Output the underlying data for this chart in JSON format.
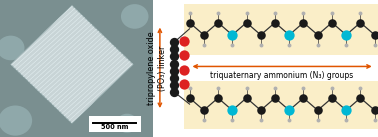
{
  "left_panel": {
    "bg_color": "#7a8f90",
    "scale_bar_text": "500 nm",
    "crystal_fill": "#c8d4d6",
    "crystal_edge": "#9ab0b2",
    "line_color_45": "#dce8ea",
    "line_color_135": "#dce8ea",
    "blob_color": "#8fa8aa"
  },
  "right_panel": {
    "strip_color": "#faeec8",
    "arrow_color": "#e05500",
    "arrow_label": "triquaternary ammonium (N₃) groups",
    "linker_label_line1": "tripropylene oxide",
    "linker_label_line2": "(PO₃) linker",
    "label_fontsize": 5.8,
    "arrow_fontsize": 5.5,
    "carbon_color": "#1a1a1a",
    "nitrogen_color": "#00b8d4",
    "hydrogen_color": "#b0b0b0",
    "oxygen_color": "#dd2222",
    "stick_color": "#333333"
  },
  "overall_bg": "#ffffff",
  "figsize": [
    3.78,
    1.37
  ],
  "dpi": 100
}
